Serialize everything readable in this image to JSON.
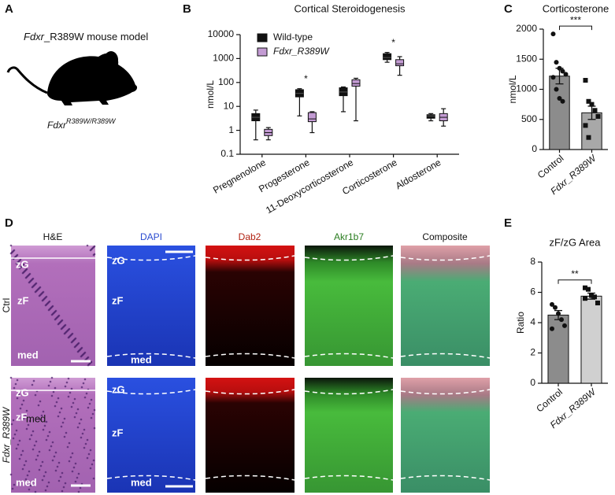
{
  "panel_letters": [
    "A",
    "B",
    "C",
    "D",
    "E"
  ],
  "panel_a": {
    "title_gene": "Fdxr",
    "title_rest": "_R389W mouse model",
    "genotype_gene": "Fdxr",
    "genotype_allele": "R389W/R389W"
  },
  "chart_data": [
    {
      "type": "box",
      "title": "Cortical Steroidogenesis",
      "y_label": "nmol/L",
      "yscale": "log",
      "ylim": [
        0.1,
        10000
      ],
      "yticks": [
        0.1,
        1,
        10,
        100,
        1000,
        10000
      ],
      "legend": "upper left",
      "categories": [
        "Pregnenolone",
        "Progesterone",
        "11-Deoxycorticosterone",
        "Corticosterone",
        "Aldosterone"
      ],
      "significance": [
        null,
        "*",
        null,
        "*",
        null
      ],
      "series": [
        {
          "name": "Wild-type",
          "color": "#111111",
          "min": [
            0.4,
            4,
            6,
            700,
            2.5
          ],
          "q1": [
            2.5,
            25,
            28,
            900,
            3.2
          ],
          "median": [
            3.5,
            35,
            40,
            1100,
            4
          ],
          "q3": [
            5,
            50,
            60,
            1600,
            4.5
          ],
          "max": [
            7,
            55,
            65,
            1800,
            5
          ]
        },
        {
          "name": "Fdxr_R389W",
          "color": "#c39bd3",
          "min": [
            0.4,
            0.8,
            2.5,
            200,
            1.5
          ],
          "q1": [
            0.6,
            2.3,
            70,
            500,
            2.5
          ],
          "median": [
            0.8,
            3,
            90,
            600,
            3.5
          ],
          "q3": [
            1.1,
            5.5,
            130,
            900,
            5
          ],
          "max": [
            1.3,
            6,
            150,
            1200,
            8
          ]
        }
      ]
    },
    {
      "type": "bar",
      "title": "Corticosterone",
      "y_label": "nmol/L",
      "ylim": [
        0,
        2000
      ],
      "yticks": [
        0,
        500,
        1000,
        1500,
        2000
      ],
      "categories": [
        "Control",
        "Fdxr_R389W"
      ],
      "colors": [
        "#8c8c8c",
        "#a8a8a8"
      ],
      "markers": [
        "circle",
        "square"
      ],
      "values": [
        1220,
        610
      ],
      "errors": [
        130,
        110
      ],
      "significance": "***",
      "points": [
        [
          1920,
          1450,
          1350,
          1300,
          1250,
          1200,
          1000,
          850,
          800
        ],
        [
          1150,
          800,
          750,
          650,
          550,
          400,
          200
        ]
      ]
    },
    {
      "type": "bar",
      "title": "zF/zG Area",
      "y_label": "Ratio",
      "ylim": [
        0,
        8
      ],
      "yticks": [
        0,
        2,
        4,
        6,
        8
      ],
      "categories": [
        "Control",
        "Fdxr_R389W"
      ],
      "colors": [
        "#8c8c8c",
        "#d0d0d0"
      ],
      "markers": [
        "circle",
        "square"
      ],
      "values": [
        4.5,
        5.75
      ],
      "errors": [
        0.3,
        0.2
      ],
      "significance": "**",
      "points": [
        [
          5.2,
          5.0,
          4.6,
          4.2,
          3.8,
          3.6
        ],
        [
          6.3,
          6.2,
          5.8,
          5.7,
          5.3,
          5.6
        ]
      ]
    }
  ],
  "panel_d": {
    "columns": [
      "H&E",
      "DAPI",
      "Dab2",
      "Akr1b7",
      "Composite"
    ],
    "rows": [
      "Ctrl",
      "Fdxr_R389W"
    ],
    "zones": {
      "he_ctrl": [
        "zG",
        "zF",
        "med"
      ],
      "dapi_ctrl": [
        "zG",
        "zF",
        "med"
      ],
      "he_mut": [
        "zG",
        "zF",
        "med",
        "med"
      ],
      "dapi_mut": [
        "zG",
        "zF",
        "med"
      ]
    }
  }
}
